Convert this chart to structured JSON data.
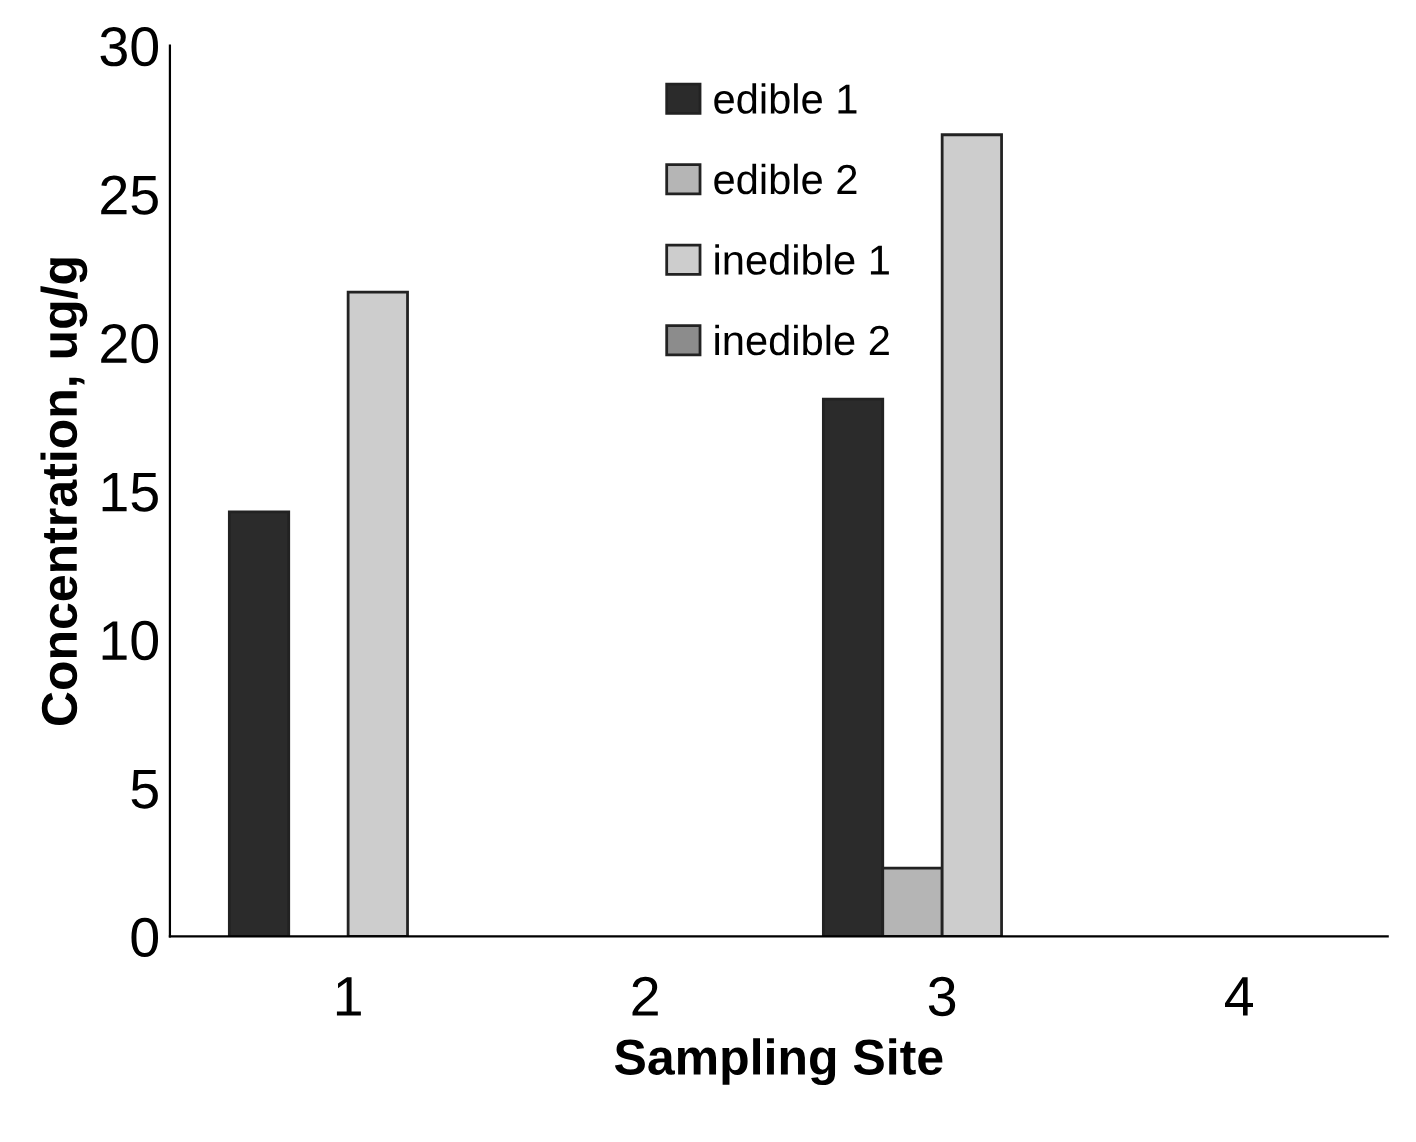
{
  "chart_data": {
    "type": "bar",
    "xlabel": "Sampling Site",
    "ylabel": "Concentration, ug/g",
    "categories": [
      "1",
      "2",
      "3",
      "4"
    ],
    "series": [
      {
        "name": "edible 1",
        "color": "#2b2b2b",
        "values": [
          14.3,
          null,
          18.1,
          null
        ]
      },
      {
        "name": "edible 2",
        "color": "#b5b5b5",
        "values": [
          null,
          null,
          2.3,
          null
        ]
      },
      {
        "name": "inedible 1",
        "color": "#cdcdcd",
        "values": [
          21.7,
          null,
          27.0,
          null
        ]
      },
      {
        "name": "inedible 2",
        "color": "#8c8c8c",
        "values": [
          null,
          null,
          null,
          null
        ]
      }
    ],
    "ylim": [
      0,
      30
    ],
    "yticks": [
      0,
      5,
      10,
      15,
      20,
      25,
      30
    ],
    "grid": false,
    "legend": "top"
  }
}
